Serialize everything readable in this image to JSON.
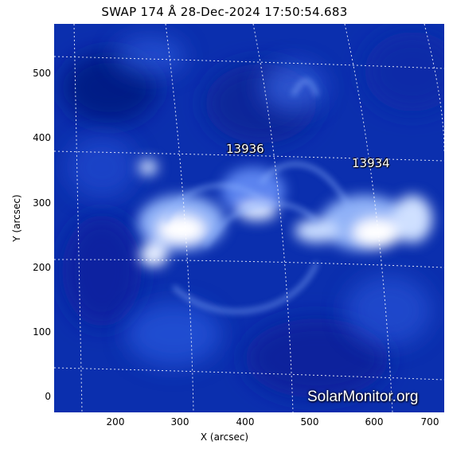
{
  "title": "SWAP 174 Å 28-Dec-2024 17:50:54.683",
  "axes": {
    "x_label": "X (arcsec)",
    "y_label": "Y (arcsec)",
    "x_ticks": [
      "200",
      "300",
      "400",
      "500",
      "600",
      "700"
    ],
    "y_ticks": [
      "500",
      "400",
      "300",
      "200",
      "100",
      "0"
    ]
  },
  "active_regions": [
    {
      "label": "13936"
    },
    {
      "label": "13934"
    }
  ],
  "watermark": "SolarMonitor.org",
  "colors": {
    "background_corona": "#0a2fb0",
    "bright_plasma": "#ffffff",
    "grid_lines": "#ffffff"
  }
}
